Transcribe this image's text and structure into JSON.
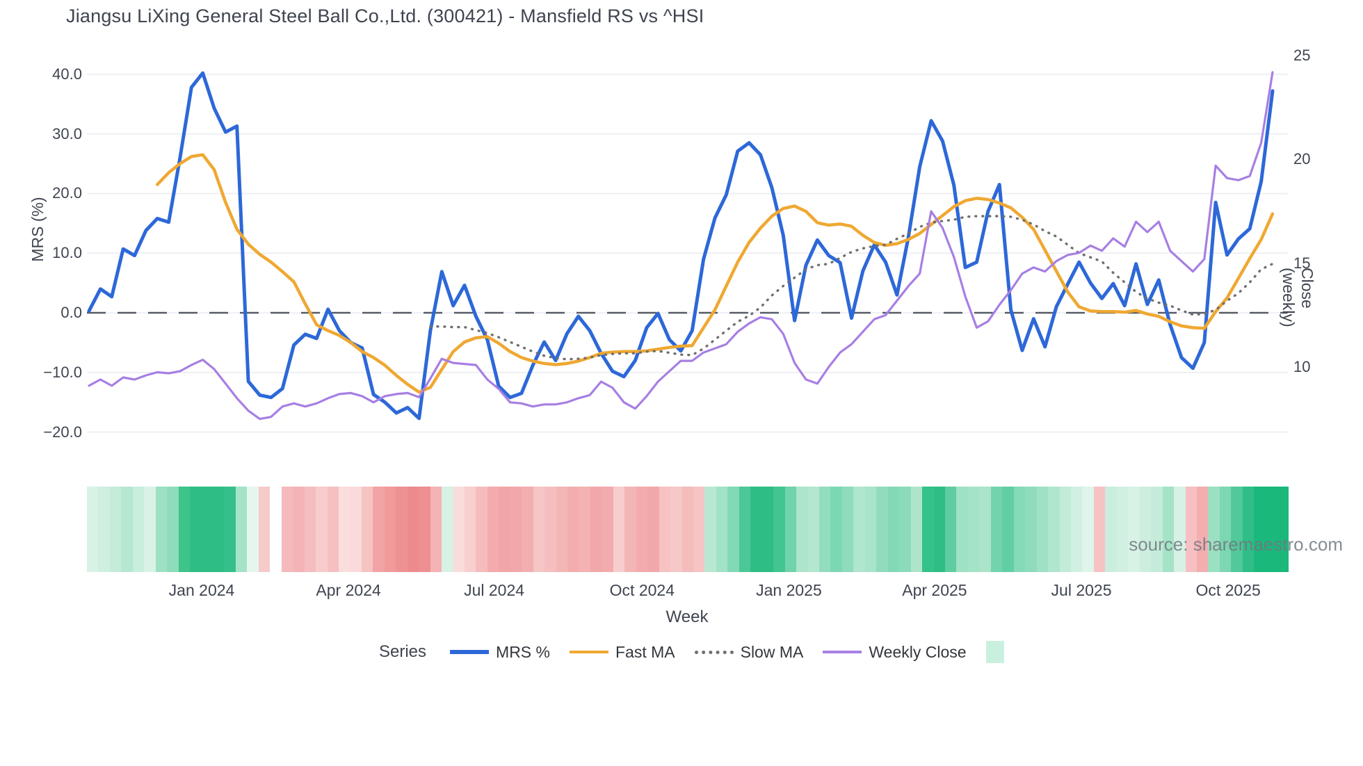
{
  "title": "Jiangsu LiXing General Steel Ball Co.,Ltd. (300421) - Mansfield RS vs ^HSI",
  "watermark": "source: sharemaestro.com",
  "axes": {
    "left": {
      "label": "MRS (%)",
      "ticks": [
        "40.0",
        "30.0",
        "20.0",
        "10.0",
        "0.0",
        "−10.0",
        "−20.0"
      ],
      "tick_values": [
        40,
        30,
        20,
        10,
        0,
        -10,
        -20
      ]
    },
    "right": {
      "label": "Close (weekly)",
      "ticks": [
        "25",
        "20",
        "15",
        "10"
      ],
      "tick_values": [
        25,
        20,
        15,
        10
      ]
    },
    "x": {
      "label": "Week",
      "ticks": [
        "Jan 2024",
        "Apr 2024",
        "Jul 2024",
        "Oct 2024",
        "Jan 2025",
        "Apr 2025",
        "Jul 2025",
        "Oct 2025"
      ],
      "tick_week_positions": [
        9.9,
        22.8,
        35.6,
        48.6,
        61.5,
        74.3,
        87.2,
        100.1
      ]
    }
  },
  "legend": {
    "label": "Series",
    "items": [
      {
        "label": "MRS %",
        "color": "#2d68d8",
        "style": "solid"
      },
      {
        "label": "Fast MA",
        "color": "#efa832",
        "style": "solid"
      },
      {
        "label": "Slow MA",
        "color": "#6f6f6f",
        "style": "dotted"
      },
      {
        "label": "Weekly Close",
        "color": "#a77fe3",
        "style": "solid"
      }
    ],
    "heatmap_swatch_color": "#c9f0de"
  },
  "colors": {
    "background": "#ffffff",
    "gridline": "#ebecf2",
    "zero_line": "#555b66",
    "text": "#3f4450"
  },
  "chart_data": {
    "type": "line",
    "title": "Jiangsu LiXing General Steel Ball Co.,Ltd. (300421) - Mansfield RS vs ^HSI",
    "xlabel": "Week",
    "ylabel_left": "MRS (%)",
    "ylabel_right": "Close (weekly)",
    "x_unit": "week_index",
    "n_points": 105,
    "ylim_left": [
      -22.5,
      43.5
    ],
    "ylim_right": [
      9.5,
      25
    ],
    "grid": "horizontal_only",
    "legend_position": "bottom",
    "zero_reference_line": 0,
    "series": [
      {
        "name": "MRS %",
        "axis": "left",
        "color": "#2d68d8",
        "style": "solid",
        "width": 5,
        "values": [
          0.3,
          4.0,
          2.7,
          10.7,
          9.6,
          13.8,
          15.8,
          15.2,
          26.0,
          37.8,
          40.2,
          34.3,
          30.3,
          31.3,
          -11.5,
          -13.8,
          -14.2,
          -12.7,
          -5.4,
          -3.6,
          -4.3,
          0.6,
          -3.0,
          -5.0,
          -5.9,
          -13.7,
          -15.0,
          -16.8,
          -15.9,
          -17.7,
          -3.0,
          6.9,
          1.2,
          4.6,
          -0.6,
          -4.5,
          -12.3,
          -14.2,
          -13.5,
          -8.8,
          -4.9,
          -8.0,
          -3.5,
          -0.6,
          -3.0,
          -6.8,
          -9.8,
          -10.7,
          -8.0,
          -2.5,
          -0.1,
          -4.5,
          -6.4,
          -3.0,
          9.0,
          15.9,
          19.8,
          27.1,
          28.5,
          26.5,
          21.0,
          13.0,
          -1.3,
          8.0,
          12.2,
          9.6,
          8.4,
          -0.9,
          7.0,
          11.4,
          8.5,
          3.0,
          12.7,
          24.5,
          32.2,
          28.8,
          21.4,
          7.6,
          8.5,
          17.0,
          21.5,
          0.5,
          -6.3,
          -1.0,
          -5.7,
          1.0,
          4.8,
          8.5,
          5.0,
          2.4,
          4.9,
          1.2,
          8.2,
          1.4,
          5.5,
          -2.0,
          -7.5,
          -9.3,
          -5.0,
          18.5,
          9.7,
          12.4,
          14.1,
          22.0,
          37.2
        ]
      },
      {
        "name": "Fast MA",
        "axis": "left",
        "color": "#efa832",
        "style": "solid",
        "width": 4.5,
        "values": [
          null,
          null,
          null,
          null,
          null,
          null,
          21.5,
          23.5,
          25.0,
          26.2,
          26.5,
          24.0,
          18.5,
          14.0,
          11.5,
          9.8,
          8.5,
          6.9,
          5.2,
          1.5,
          -2.0,
          -3.0,
          -3.8,
          -5.0,
          -6.5,
          -7.5,
          -8.8,
          -10.5,
          -12.0,
          -13.3,
          -12.5,
          -9.5,
          -6.5,
          -4.9,
          -4.2,
          -4.0,
          -5.1,
          -6.5,
          -7.5,
          -8.1,
          -8.5,
          -8.7,
          -8.5,
          -8.1,
          -7.5,
          -6.8,
          -6.6,
          -6.5,
          -6.5,
          -6.4,
          -6.1,
          -5.8,
          -5.6,
          -5.5,
          -2.5,
          0.5,
          4.5,
          8.5,
          11.8,
          14.2,
          16.2,
          17.5,
          17.9,
          17.0,
          15.1,
          14.7,
          14.9,
          14.5,
          13.0,
          11.8,
          11.3,
          11.6,
          12.3,
          13.3,
          14.8,
          16.3,
          17.8,
          18.8,
          19.2,
          19.0,
          18.4,
          17.6,
          16.0,
          14.0,
          10.5,
          7.0,
          3.5,
          1.0,
          0.3,
          0.2,
          0.2,
          0.1,
          0.4,
          -0.2,
          -0.6,
          -1.5,
          -2.2,
          -2.5,
          -2.6,
          0.2,
          2.5,
          5.8,
          9.1,
          12.3,
          16.6
        ]
      },
      {
        "name": "Slow MA",
        "axis": "left",
        "color": "#6f6f6f",
        "style": "dotted",
        "width": 3.4,
        "values": [
          null,
          null,
          null,
          null,
          null,
          null,
          null,
          null,
          null,
          null,
          null,
          null,
          null,
          null,
          null,
          null,
          null,
          null,
          null,
          null,
          null,
          null,
          null,
          null,
          null,
          null,
          null,
          null,
          null,
          null,
          -2.3,
          -2.3,
          -2.4,
          -2.4,
          -2.9,
          -3.4,
          -4.1,
          -4.9,
          -5.7,
          -6.5,
          -7.2,
          -7.6,
          -7.8,
          -7.7,
          -7.5,
          -7.1,
          -6.9,
          -6.8,
          -6.8,
          -6.5,
          -6.4,
          -6.7,
          -7.0,
          -7.1,
          -6.0,
          -4.5,
          -3.0,
          -1.5,
          -0.5,
          0.9,
          2.9,
          4.5,
          5.9,
          7.3,
          8.0,
          8.2,
          9.2,
          10.2,
          10.8,
          11.2,
          11.4,
          12.4,
          13.3,
          14.4,
          15.1,
          15.4,
          15.6,
          16.1,
          16.2,
          16.2,
          16.2,
          16.1,
          15.6,
          14.8,
          13.7,
          12.8,
          11.4,
          10.0,
          9.3,
          8.6,
          6.7,
          5.1,
          3.5,
          2.4,
          1.7,
          1.2,
          0.4,
          -0.3,
          -0.2,
          0.5,
          2.0,
          3.3,
          5.1,
          7.3,
          8.2
        ]
      },
      {
        "name": "Weekly Close",
        "axis": "right",
        "color": "#a77fe3",
        "style": "solid",
        "width": 3.2,
        "values": [
          9.1,
          9.4,
          9.1,
          9.5,
          9.4,
          9.6,
          9.75,
          9.7,
          9.8,
          10.1,
          10.35,
          9.9,
          9.2,
          8.5,
          7.9,
          7.5,
          7.6,
          8.1,
          8.25,
          8.1,
          8.25,
          8.5,
          8.7,
          8.75,
          8.6,
          8.3,
          8.6,
          8.7,
          8.75,
          8.55,
          9.45,
          10.4,
          10.2,
          10.15,
          10.1,
          9.4,
          8.95,
          8.3,
          8.25,
          8.1,
          8.2,
          8.2,
          8.3,
          8.5,
          8.65,
          9.3,
          9.0,
          8.3,
          8.0,
          8.6,
          9.3,
          9.8,
          10.3,
          10.3,
          10.7,
          10.9,
          11.1,
          11.7,
          12.1,
          12.4,
          12.3,
          11.6,
          10.2,
          9.4,
          9.2,
          10.0,
          10.7,
          11.1,
          11.7,
          12.3,
          12.5,
          13.2,
          13.9,
          14.5,
          17.5,
          16.7,
          15.3,
          13.4,
          11.9,
          12.2,
          13.0,
          13.7,
          14.5,
          14.8,
          14.6,
          15.1,
          15.4,
          15.5,
          15.85,
          15.6,
          16.2,
          15.8,
          17.0,
          16.5,
          17.0,
          15.6,
          15.1,
          14.6,
          15.2,
          19.7,
          19.1,
          19.0,
          19.2,
          20.8,
          24.2
        ]
      }
    ],
    "momentum_strip_colors": [
      "#d8f2e6",
      "#cfefe0",
      "#c4ecd9",
      "#b5e7d1",
      "#c9eedd",
      "#d8f2e6",
      "#9de1c3",
      "#8edcbc",
      "#3ec389",
      "#2dbd85",
      "#2dbd85",
      "#2dbd85",
      "#35c08a",
      "#a5e3c8",
      "#e6f6ef",
      "#f6caca",
      "#ffffff",
      "#f5babc",
      "#f4b3b6",
      "#f5bdbf",
      "#f8cccc",
      "#f6c0c0",
      "#fadddd",
      "#fadada",
      "#f6c3c3",
      "#f2a3a5",
      "#f09a9c",
      "#ee9193",
      "#ed8a8d",
      "#ee8f92",
      "#f4b3b5",
      "#d7f1e4",
      "#fadcdc",
      "#f8cfcf",
      "#f5bcbe",
      "#f3abad",
      "#f2a5a7",
      "#f2a8aa",
      "#f3aeb0",
      "#f6c5c5",
      "#f5bfbf",
      "#f4b5b5",
      "#f3adad",
      "#f4b2b2",
      "#f2a7a9",
      "#f3acae",
      "#f8cdcd",
      "#f4b5b7",
      "#f3abad",
      "#f2a8aa",
      "#f6c2c2",
      "#f7c8c8",
      "#f5bcbc",
      "#f6c4c4",
      "#b8e8d2",
      "#a2e2c5",
      "#82d9b6",
      "#4cc897",
      "#2dbd85",
      "#2dbd85",
      "#43c591",
      "#6fd3ab",
      "#ace5ca",
      "#b4e7d0",
      "#93ddbf",
      "#7cd7b3",
      "#8edcbc",
      "#b0e6cd",
      "#a8e4c9",
      "#90dcbd",
      "#83d9b6",
      "#8bdbba",
      "#ade5cb",
      "#35c18a",
      "#2dbd85",
      "#5ecda0",
      "#9fe1c4",
      "#a5e3c6",
      "#aae4c9",
      "#72d4ad",
      "#62cfa3",
      "#85dab7",
      "#8edcbc",
      "#9fe1c4",
      "#b0e6cd",
      "#c2ebd8",
      "#d2f0e2",
      "#dff4ea",
      "#f6c3c5",
      "#c9eedd",
      "#d2f0e2",
      "#d8f2e5",
      "#cdeede",
      "#c5ecda",
      "#a5e3c6",
      "#d7f1e4",
      "#f6c0c2",
      "#f3aeb0",
      "#9ce0c2",
      "#7cd7b2",
      "#52c99a",
      "#2fbe86",
      "#1bb87c",
      "#1bb87c",
      "#1bb87c"
    ]
  }
}
